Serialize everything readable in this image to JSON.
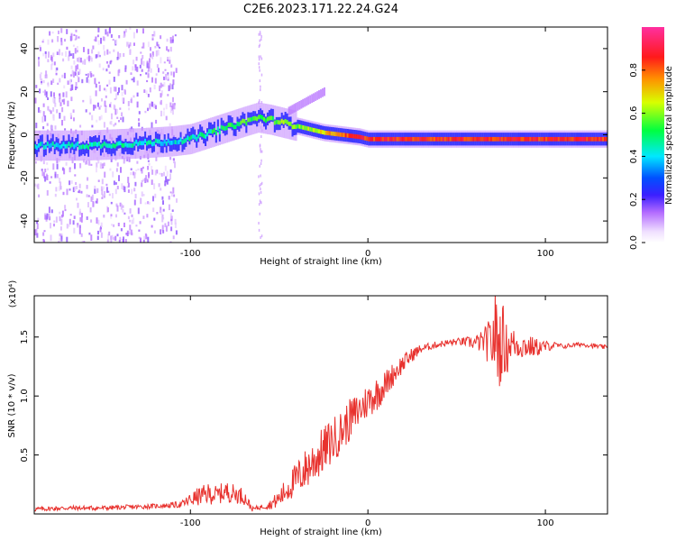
{
  "title": "C2E6.2023.171.22.24.G24",
  "chart_data": [
    {
      "type": "heatmap",
      "title": "C2E6.2023.171.22.24.G24",
      "xlabel": "Height of straight line (km)",
      "ylabel": "Frequency (Hz)",
      "xlim": [
        -188,
        135
      ],
      "ylim": [
        -50,
        50
      ],
      "xticks": [
        -100,
        0,
        100
      ],
      "yticks": [
        -40,
        -20,
        0,
        20,
        40
      ],
      "colorbar": {
        "label": "Normalized spectral amplitude",
        "range": [
          0.0,
          1.0
        ],
        "ticks": [
          0.0,
          0.2,
          0.4,
          0.6,
          0.8
        ]
      },
      "ridge": {
        "x": [
          -188,
          -160,
          -130,
          -110,
          -100,
          -85,
          -70,
          -62,
          -55,
          -45,
          -35,
          -25,
          -15,
          -5,
          0,
          20,
          50,
          80,
          100,
          135
        ],
        "freq": [
          -5,
          -5,
          -4,
          -3,
          -2,
          2,
          6,
          8,
          7,
          5,
          3,
          1,
          0,
          -1,
          -2,
          -2,
          -2,
          -2,
          -2,
          -2
        ],
        "amplitude": [
          0.4,
          0.45,
          0.45,
          0.4,
          0.45,
          0.5,
          0.55,
          0.55,
          0.55,
          0.6,
          0.6,
          0.7,
          0.8,
          0.85,
          0.85,
          0.85,
          0.85,
          0.85,
          0.85,
          0.85
        ]
      }
    },
    {
      "type": "line",
      "xlabel": "Height of straight line (km)",
      "ylabel": "SNR (10 * v/v)",
      "multiplier": "(x10⁴)",
      "xlim": [
        -188,
        135
      ],
      "ylim": [
        0,
        1.85
      ],
      "xticks": [
        -100,
        0,
        100
      ],
      "yticks": [
        0.5,
        1.0,
        1.5
      ],
      "ytick_labels": [
        "0.5",
        "1.0",
        "1.5"
      ],
      "series_color": "#e8322e",
      "x": [
        -188,
        -170,
        -150,
        -130,
        -115,
        -105,
        -100,
        -95,
        -90,
        -85,
        -80,
        -75,
        -70,
        -65,
        -60,
        -55,
        -50,
        -45,
        -40,
        -35,
        -30,
        -25,
        -20,
        -15,
        -10,
        -5,
        0,
        5,
        10,
        15,
        20,
        25,
        30,
        35,
        40,
        45,
        50,
        55,
        60,
        65,
        70,
        72,
        74,
        76,
        78,
        80,
        85,
        90,
        95,
        100,
        105,
        110,
        115,
        120,
        125,
        130,
        135
      ],
      "y": [
        0.04,
        0.05,
        0.05,
        0.06,
        0.07,
        0.08,
        0.12,
        0.15,
        0.17,
        0.16,
        0.19,
        0.17,
        0.15,
        0.04,
        0.06,
        0.08,
        0.13,
        0.22,
        0.3,
        0.38,
        0.46,
        0.54,
        0.62,
        0.7,
        0.8,
        0.88,
        0.96,
        1.02,
        1.1,
        1.2,
        1.28,
        1.35,
        1.4,
        1.42,
        1.44,
        1.45,
        1.46,
        1.46,
        1.45,
        1.46,
        1.45,
        1.55,
        1.4,
        1.5,
        1.38,
        1.45,
        1.43,
        1.42,
        1.41,
        1.42,
        1.43,
        1.42,
        1.43,
        1.44,
        1.43,
        1.42,
        1.41
      ],
      "noise": [
        0.02,
        0.02,
        0.02,
        0.02,
        0.02,
        0.03,
        0.06,
        0.08,
        0.09,
        0.08,
        0.09,
        0.08,
        0.07,
        0.02,
        0.02,
        0.04,
        0.08,
        0.12,
        0.15,
        0.18,
        0.2,
        0.2,
        0.2,
        0.18,
        0.18,
        0.16,
        0.15,
        0.15,
        0.12,
        0.1,
        0.08,
        0.06,
        0.04,
        0.03,
        0.03,
        0.03,
        0.03,
        0.04,
        0.06,
        0.1,
        0.25,
        0.4,
        0.35,
        0.3,
        0.25,
        0.15,
        0.12,
        0.1,
        0.08,
        0.05,
        0.03,
        0.02,
        0.02,
        0.02,
        0.02,
        0.02,
        0.02
      ]
    }
  ]
}
